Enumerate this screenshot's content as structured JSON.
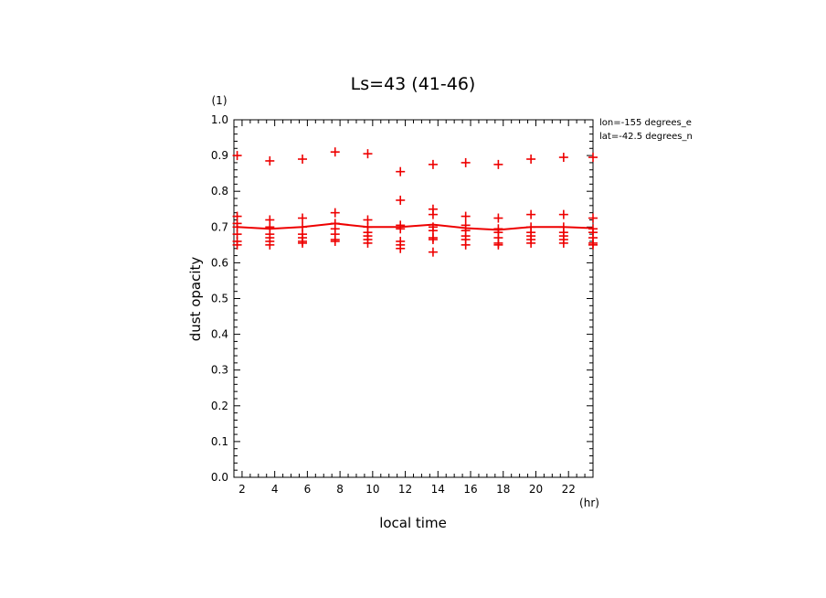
{
  "chart_data": {
    "type": "scatter",
    "title": "Ls=43 (41-46)",
    "xlabel": "local time",
    "ylabel": "dust opacity",
    "xunit": "(hr)",
    "yunit": "(1)",
    "xlim": [
      1.5,
      23.5
    ],
    "ylim": [
      0.0,
      1.0
    ],
    "xticks": [
      2,
      4,
      6,
      8,
      10,
      12,
      14,
      16,
      18,
      20,
      22
    ],
    "yticks": [
      0.0,
      0.1,
      0.2,
      0.3,
      0.4,
      0.5,
      0.6,
      0.7,
      0.8,
      0.9,
      1.0
    ],
    "ytick_labels": [
      "0.0",
      "0.1",
      "0.2",
      "0.3",
      "0.4",
      "0.5",
      "0.6",
      "0.7",
      "0.8",
      "0.9",
      "1.0"
    ],
    "annotations": [
      "lon=-155 degrees_e",
      "lat=-42.5 degrees_n"
    ],
    "color": "#ee0000",
    "series": [
      {
        "kind": "points",
        "points": [
          [
            1.7,
            0.9
          ],
          [
            1.7,
            0.73
          ],
          [
            1.7,
            0.71
          ],
          [
            1.7,
            0.7
          ],
          [
            1.7,
            0.68
          ],
          [
            1.7,
            0.66
          ],
          [
            1.7,
            0.65
          ],
          [
            3.7,
            0.885
          ],
          [
            3.7,
            0.72
          ],
          [
            3.7,
            0.7
          ],
          [
            3.7,
            0.68
          ],
          [
            3.7,
            0.67
          ],
          [
            3.7,
            0.66
          ],
          [
            3.7,
            0.65
          ],
          [
            5.7,
            0.89
          ],
          [
            5.7,
            0.725
          ],
          [
            5.7,
            0.7
          ],
          [
            5.7,
            0.68
          ],
          [
            5.7,
            0.67
          ],
          [
            5.7,
            0.66
          ],
          [
            5.7,
            0.655
          ],
          [
            7.7,
            0.91
          ],
          [
            7.7,
            0.74
          ],
          [
            7.7,
            0.71
          ],
          [
            7.7,
            0.695
          ],
          [
            7.7,
            0.68
          ],
          [
            7.7,
            0.665
          ],
          [
            7.7,
            0.66
          ],
          [
            9.7,
            0.905
          ],
          [
            9.7,
            0.72
          ],
          [
            9.7,
            0.7
          ],
          [
            9.7,
            0.685
          ],
          [
            9.7,
            0.675
          ],
          [
            9.7,
            0.665
          ],
          [
            9.7,
            0.655
          ],
          [
            11.7,
            0.855
          ],
          [
            11.7,
            0.775
          ],
          [
            11.7,
            0.705
          ],
          [
            11.7,
            0.695
          ],
          [
            11.7,
            0.66
          ],
          [
            11.7,
            0.65
          ],
          [
            11.7,
            0.64
          ],
          [
            13.7,
            0.875
          ],
          [
            13.7,
            0.75
          ],
          [
            13.7,
            0.735
          ],
          [
            13.7,
            0.7
          ],
          [
            13.7,
            0.69
          ],
          [
            13.7,
            0.67
          ],
          [
            13.7,
            0.665
          ],
          [
            13.7,
            0.63
          ],
          [
            15.7,
            0.88
          ],
          [
            15.7,
            0.73
          ],
          [
            15.7,
            0.705
          ],
          [
            15.7,
            0.69
          ],
          [
            15.7,
            0.675
          ],
          [
            15.7,
            0.665
          ],
          [
            15.7,
            0.65
          ],
          [
            17.7,
            0.875
          ],
          [
            17.7,
            0.725
          ],
          [
            17.7,
            0.695
          ],
          [
            17.7,
            0.685
          ],
          [
            17.7,
            0.67
          ],
          [
            17.7,
            0.655
          ],
          [
            17.7,
            0.65
          ],
          [
            19.7,
            0.89
          ],
          [
            19.7,
            0.735
          ],
          [
            19.7,
            0.7
          ],
          [
            19.7,
            0.685
          ],
          [
            19.7,
            0.675
          ],
          [
            19.7,
            0.665
          ],
          [
            19.7,
            0.655
          ],
          [
            21.7,
            0.895
          ],
          [
            21.7,
            0.735
          ],
          [
            21.7,
            0.7
          ],
          [
            21.7,
            0.685
          ],
          [
            21.7,
            0.675
          ],
          [
            21.7,
            0.665
          ],
          [
            21.7,
            0.655
          ],
          [
            23.5,
            0.895
          ],
          [
            23.5,
            0.725
          ],
          [
            23.5,
            0.695
          ],
          [
            23.5,
            0.685
          ],
          [
            23.5,
            0.67
          ],
          [
            23.5,
            0.655
          ],
          [
            23.5,
            0.65
          ]
        ]
      },
      {
        "kind": "line",
        "x": [
          1.7,
          3.7,
          5.7,
          7.7,
          9.7,
          11.7,
          13.7,
          15.7,
          17.7,
          19.7,
          21.7,
          23.5
        ],
        "y": [
          0.7,
          0.695,
          0.7,
          0.71,
          0.7,
          0.7,
          0.707,
          0.697,
          0.692,
          0.7,
          0.7,
          0.697
        ]
      }
    ]
  }
}
